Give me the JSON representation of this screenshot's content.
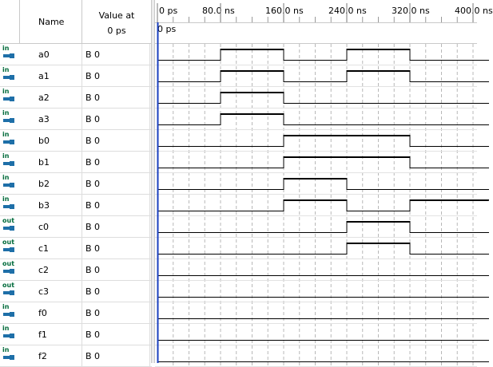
{
  "header": {
    "name_label": "Name",
    "value_label_line1": "Value at",
    "value_label_line2": "0 ps"
  },
  "timeline": {
    "ticks": [
      "0 ps",
      "80.0 ns",
      "160.0 ns",
      "240.0 ns",
      "320.0 ns",
      "400.0 ns"
    ],
    "cursor_label": "0 ps",
    "visible_end_ns": 400
  },
  "colors": {
    "cursor_line": "#1a3fbf",
    "pin_icon": "#1e6fa8",
    "direction_text": "#006a3a"
  },
  "signals": [
    {
      "name": "a0",
      "direction": "in",
      "value": "B 0",
      "transitions_ns": [
        [
          0,
          0
        ],
        [
          80,
          1
        ],
        [
          160,
          0
        ],
        [
          240,
          1
        ],
        [
          320,
          0
        ]
      ]
    },
    {
      "name": "a1",
      "direction": "in",
      "value": "B 0",
      "transitions_ns": [
        [
          0,
          0
        ],
        [
          80,
          1
        ],
        [
          160,
          0
        ],
        [
          240,
          1
        ],
        [
          320,
          0
        ]
      ]
    },
    {
      "name": "a2",
      "direction": "in",
      "value": "B 0",
      "transitions_ns": [
        [
          0,
          0
        ],
        [
          80,
          1
        ],
        [
          160,
          0
        ]
      ]
    },
    {
      "name": "a3",
      "direction": "in",
      "value": "B 0",
      "transitions_ns": [
        [
          0,
          0
        ],
        [
          80,
          1
        ],
        [
          160,
          0
        ]
      ]
    },
    {
      "name": "b0",
      "direction": "in",
      "value": "B 0",
      "transitions_ns": [
        [
          0,
          0
        ],
        [
          160,
          1
        ],
        [
          320,
          0
        ]
      ]
    },
    {
      "name": "b1",
      "direction": "in",
      "value": "B 0",
      "transitions_ns": [
        [
          0,
          0
        ],
        [
          160,
          1
        ],
        [
          320,
          0
        ]
      ]
    },
    {
      "name": "b2",
      "direction": "in",
      "value": "B 0",
      "transitions_ns": [
        [
          0,
          0
        ],
        [
          160,
          1
        ],
        [
          240,
          0
        ]
      ]
    },
    {
      "name": "b3",
      "direction": "in",
      "value": "B 0",
      "transitions_ns": [
        [
          0,
          0
        ],
        [
          160,
          1
        ],
        [
          240,
          0
        ],
        [
          320,
          1
        ]
      ]
    },
    {
      "name": "c0",
      "direction": "out",
      "value": "B 0",
      "transitions_ns": [
        [
          0,
          0
        ],
        [
          240,
          1
        ],
        [
          320,
          0
        ]
      ]
    },
    {
      "name": "c1",
      "direction": "out",
      "value": "B 0",
      "transitions_ns": [
        [
          0,
          0
        ],
        [
          240,
          1
        ],
        [
          320,
          0
        ]
      ]
    },
    {
      "name": "c2",
      "direction": "out",
      "value": "B 0",
      "transitions_ns": [
        [
          0,
          0
        ]
      ]
    },
    {
      "name": "c3",
      "direction": "out",
      "value": "B 0",
      "transitions_ns": [
        [
          0,
          0
        ]
      ]
    },
    {
      "name": "f0",
      "direction": "in",
      "value": "B 0",
      "transitions_ns": [
        [
          0,
          0
        ]
      ]
    },
    {
      "name": "f1",
      "direction": "in",
      "value": "B 0",
      "transitions_ns": [
        [
          0,
          0
        ]
      ]
    },
    {
      "name": "f2",
      "direction": "in",
      "value": "B 0",
      "transitions_ns": [
        [
          0,
          0
        ]
      ]
    }
  ]
}
